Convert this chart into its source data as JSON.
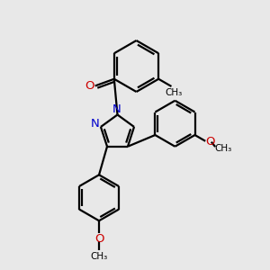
{
  "bg_color": "#e8e8e8",
  "bond_color": "#000000",
  "nitrogen_color": "#0000cc",
  "oxygen_color": "#cc0000",
  "line_width": 1.6,
  "fig_size": [
    3.0,
    3.0
  ],
  "dpi": 100,
  "xlim": [
    0,
    10
  ],
  "ylim": [
    0,
    10
  ]
}
